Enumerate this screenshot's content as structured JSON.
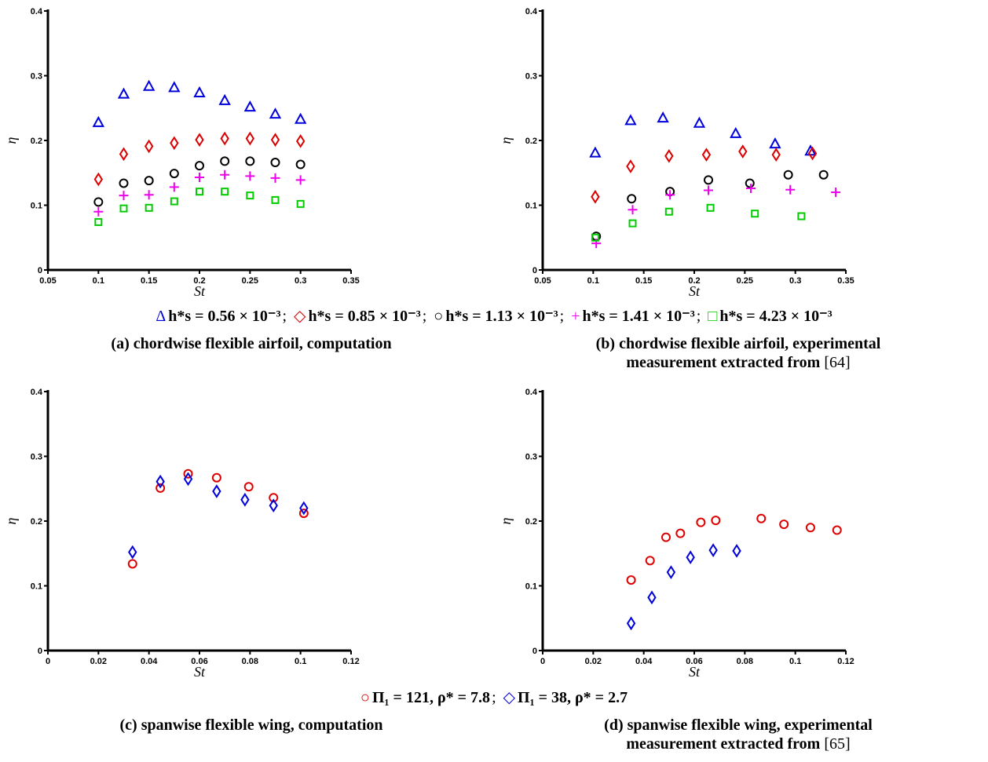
{
  "legend_top": {
    "entries": [
      {
        "symbol": "Δ",
        "color": "#0000dd",
        "text": "h*s = 0.56 × 10⁻³"
      },
      {
        "symbol": "◇",
        "color": "#dd0000",
        "text": "h*s = 0.85 × 10⁻³"
      },
      {
        "symbol": "○",
        "color": "#000000",
        "text": "h*s = 1.13 × 10⁻³"
      },
      {
        "symbol": "+",
        "color": "#ee00ee",
        "text": "h*s = 1.41 × 10⁻³"
      },
      {
        "symbol": "□",
        "color": "#00cc00",
        "text": "h*s = 4.23 × 10⁻³"
      }
    ]
  },
  "legend_bottom": {
    "entries": [
      {
        "symbol": "○",
        "color": "#dd0000",
        "text": "Π₁ = 121, ρ* = 7.8"
      },
      {
        "symbol": "◇",
        "color": "#0000dd",
        "text": "Π₁ = 38, ρ* = 2.7"
      }
    ]
  },
  "captions": {
    "a": {
      "text": "(a) chordwise flexible airfoil, computation"
    },
    "b": {
      "line1": "(b) chordwise flexible airfoil, experimental",
      "line2": "measurement extracted from",
      "ref": "[64]"
    },
    "c": {
      "text": "(c) spanwise flexible wing, computation"
    },
    "d": {
      "line1": "(d) spanwise flexible wing, experimental",
      "line2": "measurement extracted from",
      "ref": "[65]"
    }
  },
  "chart_data": [
    {
      "type": "scatter",
      "xlabel": "St",
      "ylabel": "η",
      "xlim": [
        0.05,
        0.35
      ],
      "ylim": [
        0,
        0.4
      ],
      "xticks": [
        0.05,
        0.1,
        0.15,
        0.2,
        0.25,
        0.3,
        0.35
      ],
      "xtick_labels": [
        "0.05",
        "0.1",
        "0.15",
        "0.2",
        "0.25",
        "0.3",
        "0.35"
      ],
      "yticks": [
        0,
        0.1,
        0.2,
        0.3,
        0.4
      ],
      "ytick_labels": [
        "0",
        "0.1",
        "0.2",
        "0.3",
        "0.4"
      ],
      "grid": false,
      "series": [
        {
          "marker": "triangle",
          "color": "#0000dd",
          "x": [
            0.1,
            0.125,
            0.15,
            0.175,
            0.2,
            0.225,
            0.25,
            0.275,
            0.3
          ],
          "y": [
            0.228,
            0.272,
            0.284,
            0.282,
            0.274,
            0.262,
            0.252,
            0.241,
            0.233
          ]
        },
        {
          "marker": "diamond",
          "color": "#dd0000",
          "x": [
            0.1,
            0.125,
            0.15,
            0.175,
            0.2,
            0.225,
            0.25,
            0.275,
            0.3
          ],
          "y": [
            0.14,
            0.179,
            0.191,
            0.196,
            0.201,
            0.203,
            0.203,
            0.201,
            0.199
          ]
        },
        {
          "marker": "circle",
          "color": "#000000",
          "x": [
            0.1,
            0.125,
            0.15,
            0.175,
            0.2,
            0.225,
            0.25,
            0.275,
            0.3
          ],
          "y": [
            0.105,
            0.134,
            0.138,
            0.149,
            0.161,
            0.168,
            0.168,
            0.166,
            0.163
          ]
        },
        {
          "marker": "plus",
          "color": "#ee00ee",
          "x": [
            0.1,
            0.125,
            0.15,
            0.175,
            0.2,
            0.225,
            0.25,
            0.275,
            0.3
          ],
          "y": [
            0.09,
            0.115,
            0.116,
            0.128,
            0.143,
            0.147,
            0.145,
            0.142,
            0.139
          ]
        },
        {
          "marker": "square",
          "color": "#00cc00",
          "x": [
            0.1,
            0.125,
            0.15,
            0.175,
            0.2,
            0.225,
            0.25,
            0.275,
            0.3
          ],
          "y": [
            0.074,
            0.095,
            0.096,
            0.106,
            0.121,
            0.121,
            0.115,
            0.108,
            0.102
          ]
        }
      ]
    },
    {
      "type": "scatter",
      "xlabel": "St",
      "ylabel": "η",
      "xlim": [
        0.05,
        0.35
      ],
      "ylim": [
        0,
        0.4
      ],
      "xticks": [
        0.05,
        0.1,
        0.15,
        0.2,
        0.25,
        0.3,
        0.35
      ],
      "xtick_labels": [
        "0.05",
        "0.1",
        "0.15",
        "0.2",
        "0.25",
        "0.3",
        "0.35"
      ],
      "yticks": [
        0,
        0.1,
        0.2,
        0.3,
        0.4
      ],
      "ytick_labels": [
        "0",
        "0.1",
        "0.2",
        "0.3",
        "0.4"
      ],
      "grid": false,
      "series": [
        {
          "marker": "triangle",
          "color": "#0000dd",
          "x": [
            0.102,
            0.137,
            0.169,
            0.205,
            0.241,
            0.28,
            0.315
          ],
          "y": [
            0.181,
            0.231,
            0.235,
            0.227,
            0.211,
            0.195,
            0.184
          ]
        },
        {
          "marker": "diamond",
          "color": "#dd0000",
          "x": [
            0.102,
            0.137,
            0.175,
            0.212,
            0.248,
            0.281,
            0.317
          ],
          "y": [
            0.113,
            0.16,
            0.176,
            0.178,
            0.183,
            0.178,
            0.18
          ]
        },
        {
          "marker": "circle",
          "color": "#000000",
          "x": [
            0.103,
            0.138,
            0.176,
            0.214,
            0.255,
            0.293,
            0.328
          ],
          "y": [
            0.052,
            0.11,
            0.121,
            0.139,
            0.134,
            0.147,
            0.147
          ]
        },
        {
          "marker": "plus",
          "color": "#ee00ee",
          "x": [
            0.103,
            0.139,
            0.176,
            0.214,
            0.256,
            0.295,
            0.34
          ],
          "y": [
            0.041,
            0.093,
            0.116,
            0.123,
            0.126,
            0.124,
            0.12
          ]
        },
        {
          "marker": "square",
          "color": "#00cc00",
          "x": [
            0.102,
            0.139,
            0.175,
            0.216,
            0.26,
            0.306
          ],
          "y": [
            0.05,
            0.072,
            0.09,
            0.096,
            0.087,
            0.083
          ]
        }
      ]
    },
    {
      "type": "scatter",
      "xlabel": "St",
      "ylabel": "η",
      "xlim": [
        0,
        0.12
      ],
      "ylim": [
        0,
        0.4
      ],
      "xticks": [
        0,
        0.02,
        0.04,
        0.06,
        0.08,
        0.1,
        0.12
      ],
      "xtick_labels": [
        "0",
        "0.02",
        "0.04",
        "0.06",
        "0.08",
        "0.1",
        "0.12"
      ],
      "yticks": [
        0,
        0.1,
        0.2,
        0.3,
        0.4
      ],
      "ytick_labels": [
        "0",
        "0.1",
        "0.2",
        "0.3",
        "0.4"
      ],
      "grid": false,
      "series": [
        {
          "marker": "circle",
          "color": "#dd0000",
          "x": [
            0.0335,
            0.0445,
            0.0555,
            0.0668,
            0.0795,
            0.0893,
            0.1013
          ],
          "y": [
            0.134,
            0.251,
            0.273,
            0.267,
            0.253,
            0.236,
            0.212
          ]
        },
        {
          "marker": "diamond",
          "color": "#0000dd",
          "x": [
            0.0335,
            0.0445,
            0.0555,
            0.0668,
            0.078,
            0.0893,
            0.1013
          ],
          "y": [
            0.152,
            0.261,
            0.265,
            0.246,
            0.233,
            0.224,
            0.22
          ]
        }
      ]
    },
    {
      "type": "scatter",
      "xlabel": "St",
      "ylabel": "η",
      "xlim": [
        0,
        0.12
      ],
      "ylim": [
        0,
        0.4
      ],
      "xticks": [
        0,
        0.02,
        0.04,
        0.06,
        0.08,
        0.1,
        0.12
      ],
      "xtick_labels": [
        "0",
        "0.02",
        "0.04",
        "0.06",
        "0.08",
        "0.1",
        "0.12"
      ],
      "yticks": [
        0,
        0.1,
        0.2,
        0.3,
        0.4
      ],
      "ytick_labels": [
        "0",
        "0.1",
        "0.2",
        "0.3",
        "0.4"
      ],
      "grid": false,
      "series": [
        {
          "marker": "circle",
          "color": "#dd0000",
          "x": [
            0.035,
            0.0425,
            0.0488,
            0.0545,
            0.0626,
            0.0685,
            0.0865,
            0.0955,
            0.106,
            0.1165
          ],
          "y": [
            0.109,
            0.139,
            0.175,
            0.181,
            0.198,
            0.201,
            0.204,
            0.195,
            0.19,
            0.186
          ]
        },
        {
          "marker": "diamond",
          "color": "#0000dd",
          "x": [
            0.035,
            0.0432,
            0.0508,
            0.0585,
            0.0675,
            0.0768
          ],
          "y": [
            0.042,
            0.082,
            0.121,
            0.144,
            0.155,
            0.154
          ]
        }
      ]
    }
  ]
}
